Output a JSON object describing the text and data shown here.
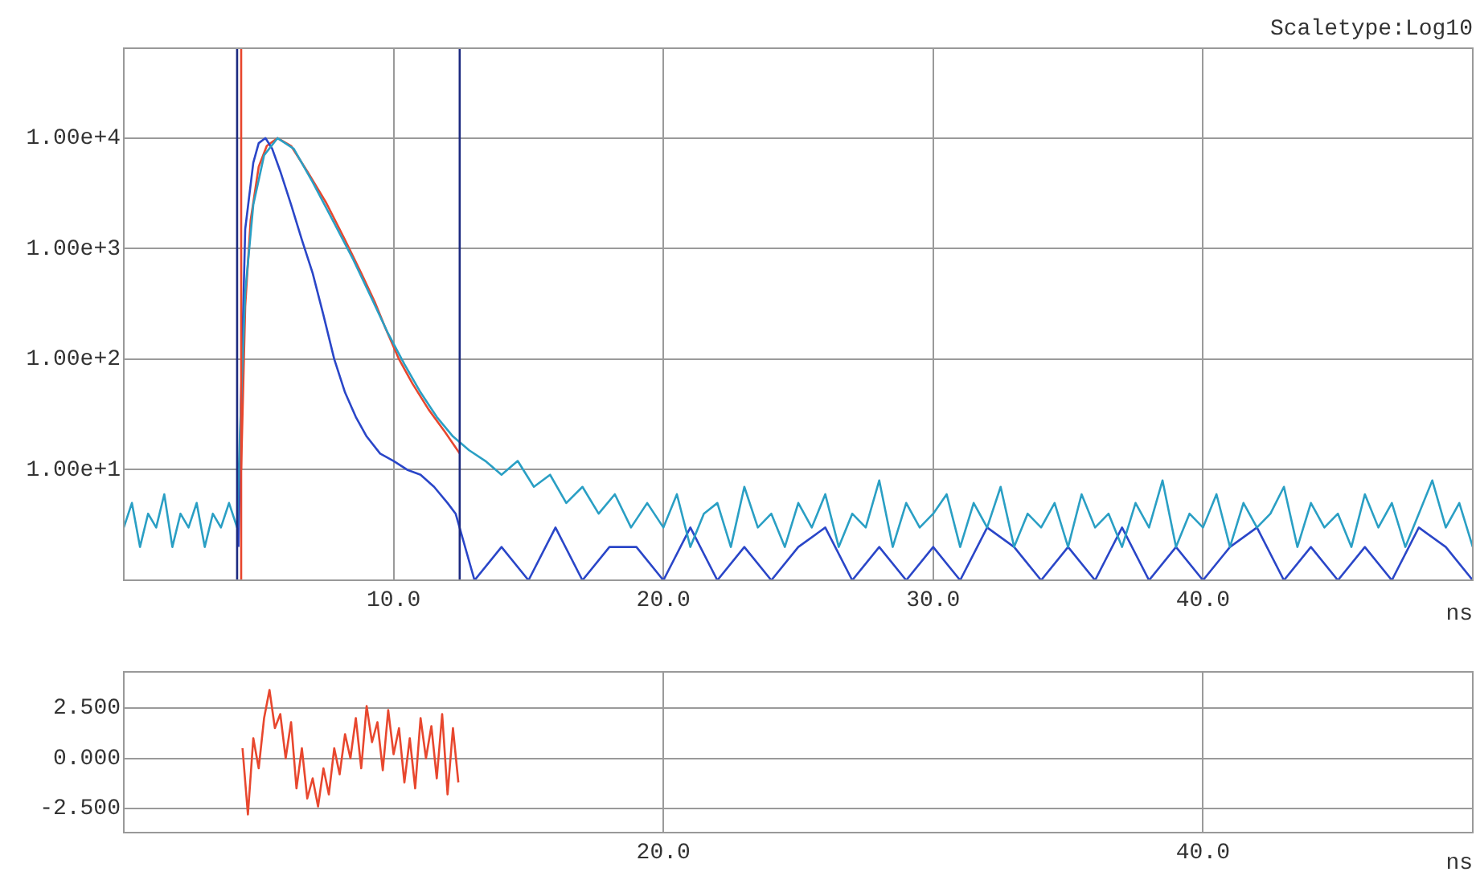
{
  "chart_data": [
    {
      "type": "line",
      "annotations": [
        "Scaletype:Log10"
      ],
      "xlabel": "ns",
      "log": "y",
      "grid": true,
      "marker": "none",
      "xlim": [
        0,
        50
      ],
      "xticks": [
        {
          "value": 10,
          "label": "10.0"
        },
        {
          "value": 20,
          "label": "20.0"
        },
        {
          "value": 30,
          "label": "30.0"
        },
        {
          "value": 40,
          "label": "40.0"
        }
      ],
      "ylim": [
        1,
        65000
      ],
      "yticks": [
        {
          "value": 10,
          "label": "1.00e+1"
        },
        {
          "value": 100,
          "label": "1.00e+2"
        },
        {
          "value": 1000,
          "label": "1.00e+3"
        },
        {
          "value": 10000,
          "label": "1.00e+4"
        }
      ],
      "ref_lines": [
        {
          "axis": "x",
          "value": 4.2,
          "color": "#1c2a80"
        },
        {
          "axis": "x",
          "value": 4.35,
          "color": "#e8472e"
        },
        {
          "axis": "x",
          "value": 12.45,
          "color": "#1c2a80"
        }
      ],
      "series": [
        {
          "color": "#2a9fc4",
          "x": [
            0,
            0.3,
            0.6,
            0.9,
            1.2,
            1.5,
            1.8,
            2.1,
            2.4,
            2.7,
            3.0,
            3.3,
            3.6,
            3.9,
            4.2,
            4.3,
            4.5,
            4.8,
            5.2,
            5.7,
            6.3,
            7.0,
            7.8,
            8.5,
            9.2,
            9.8,
            10.4,
            11.0,
            11.6,
            12.2,
            12.8,
            13.4,
            14.0,
            14.6,
            15.2,
            15.8,
            16.4,
            17.0,
            17.6,
            18.2,
            18.8,
            19.4,
            20,
            20.5,
            21,
            21.5,
            22,
            22.5,
            23,
            23.5,
            24,
            24.5,
            25,
            25.5,
            26,
            26.5,
            27,
            27.5,
            28,
            28.5,
            29,
            29.5,
            30,
            30.5,
            31,
            31.5,
            32,
            32.5,
            33,
            33.5,
            34,
            34.5,
            35,
            35.5,
            36,
            36.5,
            37,
            37.5,
            38,
            38.5,
            39,
            39.5,
            40,
            40.5,
            41,
            41.5,
            42,
            42.5,
            43,
            43.5,
            44,
            44.5,
            45,
            45.5,
            46,
            46.5,
            47,
            47.5,
            48,
            48.5,
            49,
            49.5,
            50
          ],
          "values": [
            3,
            5,
            2,
            4,
            3,
            6,
            2,
            4,
            3,
            5,
            2,
            4,
            3,
            5,
            3,
            20,
            400,
            2500,
            7000,
            10000,
            8000,
            4000,
            1700,
            800,
            350,
            170,
            90,
            50,
            30,
            20,
            15,
            12,
            9,
            12,
            7,
            9,
            5,
            7,
            4,
            6,
            3,
            5,
            3,
            6,
            2,
            4,
            5,
            2,
            7,
            3,
            4,
            2,
            5,
            3,
            6,
            2,
            4,
            3,
            8,
            2,
            5,
            3,
            4,
            6,
            2,
            5,
            3,
            7,
            2,
            4,
            3,
            5,
            2,
            6,
            3,
            4,
            2,
            5,
            3,
            8,
            2,
            4,
            3,
            6,
            2,
            5,
            3,
            4,
            7,
            2,
            5,
            3,
            4,
            2,
            6,
            3,
            5,
            2,
            4,
            8,
            3,
            5,
            2
          ]
        },
        {
          "color": "#2a46c8",
          "x": [
            4.25,
            4.35,
            4.5,
            4.8,
            5.0,
            5.25,
            5.5,
            5.8,
            6.2,
            6.6,
            7.0,
            7.4,
            7.8,
            8.2,
            8.6,
            9.0,
            9.5,
            10.0,
            10.5,
            11.0,
            11.5,
            12.0,
            12.3,
            13,
            14,
            15,
            16,
            17,
            18,
            19,
            20,
            21,
            22,
            23,
            24,
            25,
            26,
            27,
            28,
            29,
            30,
            31,
            32,
            33,
            34,
            35,
            36,
            37,
            38,
            39,
            40,
            41,
            42,
            43,
            44,
            45,
            46,
            47,
            48,
            49,
            50
          ],
          "values": [
            2,
            50,
            1500,
            6000,
            9000,
            10000,
            8000,
            5000,
            2500,
            1200,
            600,
            250,
            100,
            50,
            30,
            20,
            14,
            12,
            10,
            9,
            7,
            5,
            4,
            1,
            2,
            1,
            3,
            1,
            2,
            2,
            1,
            3,
            1,
            2,
            1,
            2,
            3,
            1,
            2,
            1,
            2,
            1,
            3,
            2,
            1,
            2,
            1,
            3,
            1,
            2,
            1,
            2,
            3,
            1,
            2,
            1,
            2,
            1,
            3,
            2,
            1
          ]
        },
        {
          "color": "#e8472e",
          "x": [
            4.35,
            4.5,
            4.7,
            5.0,
            5.3,
            5.7,
            6.2,
            6.8,
            7.5,
            8.2,
            8.8,
            9.3,
            9.7,
            10.2,
            10.7,
            11.3,
            11.9,
            12.45
          ],
          "values": [
            10,
            300,
            1800,
            5500,
            8500,
            10000,
            8500,
            5000,
            2600,
            1200,
            600,
            330,
            190,
            100,
            60,
            35,
            22,
            14
          ]
        }
      ]
    },
    {
      "type": "line",
      "xlabel": "ns",
      "grid": true,
      "marker": "none",
      "xlim": [
        0,
        50
      ],
      "xticks": [
        {
          "value": 20,
          "label": "20.0"
        },
        {
          "value": 40,
          "label": "40.0"
        }
      ],
      "ylim": [
        -3.7,
        4.3
      ],
      "yticks": [
        {
          "value": 2.5,
          "label": "2.500"
        },
        {
          "value": 0,
          "label": "0.000"
        },
        {
          "value": -2.5,
          "label": "-2.500"
        }
      ],
      "series": [
        {
          "color": "#e8472e",
          "x": [
            4.4,
            4.6,
            4.8,
            5.0,
            5.2,
            5.4,
            5.6,
            5.8,
            6.0,
            6.2,
            6.4,
            6.6,
            6.8,
            7.0,
            7.2,
            7.4,
            7.6,
            7.8,
            8.0,
            8.2,
            8.4,
            8.6,
            8.8,
            9.0,
            9.2,
            9.4,
            9.6,
            9.8,
            10.0,
            10.2,
            10.4,
            10.6,
            10.8,
            11.0,
            11.2,
            11.4,
            11.6,
            11.8,
            12.0,
            12.2,
            12.4
          ],
          "values": [
            0.5,
            -2.8,
            1.0,
            -0.5,
            2.0,
            3.4,
            1.5,
            2.2,
            0.0,
            1.8,
            -1.5,
            0.5,
            -2.0,
            -1.0,
            -2.4,
            -0.5,
            -1.8,
            0.5,
            -0.8,
            1.2,
            0.0,
            2.0,
            -0.5,
            2.6,
            0.8,
            1.8,
            -0.6,
            2.4,
            0.2,
            1.5,
            -1.2,
            1.0,
            -1.5,
            2.0,
            0.0,
            1.6,
            -1.0,
            2.2,
            -1.8,
            1.5,
            -1.2
          ]
        }
      ]
    }
  ]
}
